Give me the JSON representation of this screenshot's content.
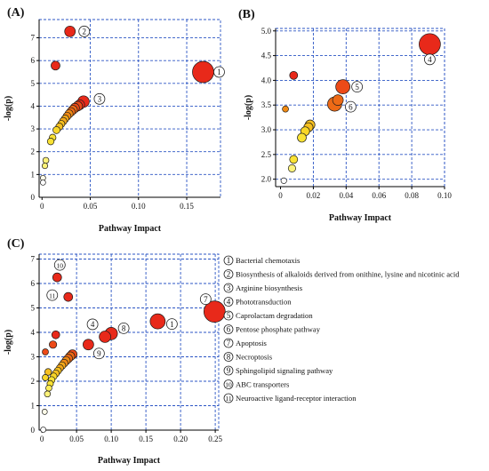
{
  "chart_data": [
    {
      "type": "scatter",
      "panel": "(A)",
      "xlabel": "Pathway Impact",
      "ylabel": "-log(p)",
      "xlim": [
        -0.003,
        0.185
      ],
      "ylim": [
        0,
        7.8
      ],
      "xticks": [
        0,
        0.05,
        0.1,
        0.15
      ],
      "xtick_labels": [
        "0",
        "0.05",
        "0.10",
        "0.15"
      ],
      "yticks": [
        1,
        2,
        3,
        4,
        5,
        6,
        7
      ],
      "grid": true,
      "points": [
        {
          "x": 0.167,
          "y": 5.5,
          "r": 12,
          "color": "#e8291a",
          "label": "1"
        },
        {
          "x": 0.029,
          "y": 7.28,
          "r": 6,
          "color": "#e8291a",
          "label": "2"
        },
        {
          "x": 0.043,
          "y": 4.2,
          "r": 6.5,
          "color": "#e8291a",
          "label": "3"
        },
        {
          "x": 0.014,
          "y": 5.78,
          "r": 5,
          "color": "#e8291a"
        },
        {
          "x": 0.039,
          "y": 4.06,
          "r": 5.6,
          "color": "#e8291a"
        },
        {
          "x": 0.037,
          "y": 4.0,
          "r": 5.4,
          "color": "#ec4a18"
        },
        {
          "x": 0.034,
          "y": 3.92,
          "r": 5.2,
          "color": "#ec4a18"
        },
        {
          "x": 0.032,
          "y": 3.84,
          "r": 5,
          "color": "#ee6a16"
        },
        {
          "x": 0.03,
          "y": 3.75,
          "r": 4.8,
          "color": "#ee6a16"
        },
        {
          "x": 0.028,
          "y": 3.66,
          "r": 4.6,
          "color": "#f08a14"
        },
        {
          "x": 0.026,
          "y": 3.56,
          "r": 4.4,
          "color": "#f08a14"
        },
        {
          "x": 0.024,
          "y": 3.45,
          "r": 4.2,
          "color": "#f4a818"
        },
        {
          "x": 0.022,
          "y": 3.34,
          "r": 4.2,
          "color": "#f4a818"
        },
        {
          "x": 0.02,
          "y": 3.22,
          "r": 4,
          "color": "#f6c020"
        },
        {
          "x": 0.018,
          "y": 3.1,
          "r": 4,
          "color": "#f6c020"
        },
        {
          "x": 0.015,
          "y": 2.95,
          "r": 4,
          "color": "#f8d628"
        },
        {
          "x": 0.011,
          "y": 2.62,
          "r": 3.8,
          "color": "#fae234"
        },
        {
          "x": 0.009,
          "y": 2.45,
          "r": 3.8,
          "color": "#fae234"
        },
        {
          "x": 0.004,
          "y": 1.62,
          "r": 3.4,
          "color": "#fdf27a"
        },
        {
          "x": 0.003,
          "y": 1.38,
          "r": 3.2,
          "color": "#fdf27a"
        },
        {
          "x": 0.001,
          "y": 0.85,
          "r": 3,
          "color": "#fffce8"
        },
        {
          "x": 0.001,
          "y": 0.65,
          "r": 3,
          "color": "#ffffff"
        }
      ]
    },
    {
      "type": "scatter",
      "panel": "(B)",
      "xlabel": "Pathway Impact",
      "ylabel": "-log(p)",
      "xlim": [
        -0.003,
        0.1
      ],
      "ylim": [
        1.85,
        5.05
      ],
      "xticks": [
        0,
        0.02,
        0.04,
        0.06,
        0.08,
        0.1
      ],
      "xtick_labels": [
        "0",
        "0.02",
        "0.04",
        "0.06",
        "0.08",
        "0.10"
      ],
      "yticks": [
        2.0,
        2.5,
        3.0,
        3.5,
        4.0,
        4.5,
        5.0
      ],
      "ytick_labels": [
        "2.0",
        "2.5",
        "3.0",
        "3.5",
        "4.0",
        "4.5",
        "5.0"
      ],
      "grid": true,
      "points": [
        {
          "x": 0.091,
          "y": 4.73,
          "r": 12,
          "color": "#e8291a",
          "label": "4"
        },
        {
          "x": 0.038,
          "y": 3.87,
          "r": 8,
          "color": "#ec4a18",
          "label": "5"
        },
        {
          "x": 0.033,
          "y": 3.52,
          "r": 8,
          "color": "#ee6a16",
          "label": "6"
        },
        {
          "x": 0.008,
          "y": 4.1,
          "r": 4.5,
          "color": "#e8291a"
        },
        {
          "x": 0.035,
          "y": 3.6,
          "r": 6,
          "color": "#ee6a16"
        },
        {
          "x": 0.003,
          "y": 3.42,
          "r": 3.5,
          "color": "#f08a14"
        },
        {
          "x": 0.018,
          "y": 3.1,
          "r": 5.5,
          "color": "#f6c020"
        },
        {
          "x": 0.017,
          "y": 3.05,
          "r": 5.2,
          "color": "#f6c020"
        },
        {
          "x": 0.015,
          "y": 2.97,
          "r": 5,
          "color": "#f8d628"
        },
        {
          "x": 0.013,
          "y": 2.84,
          "r": 5,
          "color": "#fae234"
        },
        {
          "x": 0.008,
          "y": 2.4,
          "r": 4.5,
          "color": "#fae234"
        },
        {
          "x": 0.007,
          "y": 2.22,
          "r": 4.2,
          "color": "#fdf27a"
        },
        {
          "x": 0.002,
          "y": 1.97,
          "r": 3.2,
          "color": "#ffffff"
        }
      ]
    },
    {
      "type": "scatter",
      "panel": "(C)",
      "xlabel": "Pathway Impact",
      "ylabel": "-log(p)",
      "xlim": [
        -0.004,
        0.255
      ],
      "ylim": [
        0,
        7.2
      ],
      "xticks": [
        0,
        0.05,
        0.1,
        0.15,
        0.2,
        0.25
      ],
      "xtick_labels": [
        "0",
        "0.05",
        "0.10",
        "0.15",
        "0.20",
        "0.25"
      ],
      "yticks": [
        1,
        2,
        3,
        4,
        5,
        6,
        7
      ],
      "grid": true,
      "points": [
        {
          "x": 0.249,
          "y": 4.85,
          "r": 12,
          "color": "#e8291a",
          "label": "7"
        },
        {
          "x": 0.167,
          "y": 4.45,
          "r": 8.5,
          "color": "#e8291a",
          "label": "1"
        },
        {
          "x": 0.1,
          "y": 3.95,
          "r": 7,
          "color": "#e8291a",
          "label": "8"
        },
        {
          "x": 0.091,
          "y": 3.82,
          "r": 6.5,
          "color": "#e8291a",
          "label": "4"
        },
        {
          "x": 0.067,
          "y": 3.5,
          "r": 6,
          "color": "#e8291a",
          "label": "9"
        },
        {
          "x": 0.022,
          "y": 6.25,
          "r": 5,
          "color": "#e8291a",
          "label": "10"
        },
        {
          "x": 0.038,
          "y": 5.45,
          "r": 5,
          "color": "#e8291a",
          "label": "11"
        },
        {
          "x": 0.02,
          "y": 3.9,
          "r": 4.5,
          "color": "#e8291a"
        },
        {
          "x": 0.016,
          "y": 3.5,
          "r": 4.2,
          "color": "#ec4a18"
        },
        {
          "x": 0.005,
          "y": 3.2,
          "r": 3.5,
          "color": "#ec4a18"
        },
        {
          "x": 0.044,
          "y": 3.1,
          "r": 5.2,
          "color": "#ec4a18"
        },
        {
          "x": 0.041,
          "y": 3.02,
          "r": 5,
          "color": "#ee6a16"
        },
        {
          "x": 0.038,
          "y": 2.93,
          "r": 4.8,
          "color": "#ee6a16"
        },
        {
          "x": 0.035,
          "y": 2.84,
          "r": 4.6,
          "color": "#f08a14"
        },
        {
          "x": 0.032,
          "y": 2.74,
          "r": 4.4,
          "color": "#f08a14"
        },
        {
          "x": 0.029,
          "y": 2.64,
          "r": 4.2,
          "color": "#f4a818"
        },
        {
          "x": 0.026,
          "y": 2.54,
          "r": 4,
          "color": "#f4a818"
        },
        {
          "x": 0.023,
          "y": 2.43,
          "r": 4,
          "color": "#f6c020"
        },
        {
          "x": 0.009,
          "y": 2.38,
          "r": 3.8,
          "color": "#f6c020"
        },
        {
          "x": 0.02,
          "y": 2.32,
          "r": 4,
          "color": "#f6c020"
        },
        {
          "x": 0.017,
          "y": 2.2,
          "r": 3.8,
          "color": "#f8d628"
        },
        {
          "x": 0.005,
          "y": 2.15,
          "r": 3.5,
          "color": "#f8d628"
        },
        {
          "x": 0.014,
          "y": 2.05,
          "r": 3.8,
          "color": "#fae234"
        },
        {
          "x": 0.012,
          "y": 1.9,
          "r": 3.6,
          "color": "#fae234"
        },
        {
          "x": 0.01,
          "y": 1.72,
          "r": 3.5,
          "color": "#fcec5a"
        },
        {
          "x": 0.008,
          "y": 1.48,
          "r": 3.4,
          "color": "#fdf27a"
        },
        {
          "x": 0.004,
          "y": 0.75,
          "r": 3,
          "color": "#fffce8"
        },
        {
          "x": 0.002,
          "y": 0.02,
          "r": 3,
          "color": "#ffffff"
        }
      ]
    }
  ],
  "legend": [
    {
      "num": "1",
      "text": "Bacterial chemotaxis"
    },
    {
      "num": "2",
      "text": "Biosynthesis of alkaloids derived from onithine, lysine and nicotinic acid"
    },
    {
      "num": "3",
      "text": "Arginine biosynthesis"
    },
    {
      "num": "4",
      "text": "Phototransduction"
    },
    {
      "num": "5",
      "text": "Caprolactam degradation"
    },
    {
      "num": "6",
      "text": "Pentose phosphate pathway"
    },
    {
      "num": "7",
      "text": "Apoptosis"
    },
    {
      "num": "8",
      "text": "Necroptosis"
    },
    {
      "num": "9",
      "text": "Sphingolipid signaling pathway"
    },
    {
      "num": "10",
      "text": "ABC transporters"
    },
    {
      "num": "11",
      "text": "Neuroactive ligand-receptor interaction"
    }
  ]
}
